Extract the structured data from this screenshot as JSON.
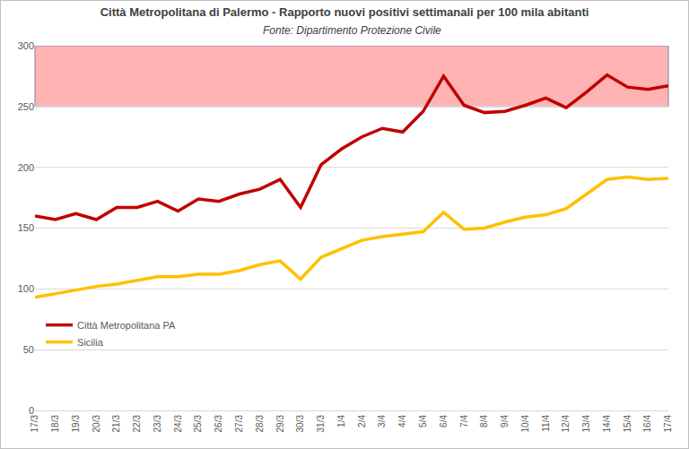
{
  "chart_data": {
    "type": "line",
    "title": "Città Metropolitana di Palermo - Rapporto nuovi positivi settimanali per 100 mila abitanti",
    "subtitle": "Fonte: Dipartimento Protezione Civile",
    "categories": [
      "17/3",
      "18/3",
      "19/3",
      "20/3",
      "21/3",
      "22/3",
      "23/3",
      "24/3",
      "25/3",
      "26/3",
      "27/3",
      "28/3",
      "29/3",
      "30/3",
      "31/3",
      "1/4",
      "2/4",
      "3/4",
      "4/4",
      "5/4",
      "6/4",
      "7/4",
      "8/4",
      "9/4",
      "10/4",
      "11/4",
      "12/4",
      "13/4",
      "14/4",
      "15/4",
      "16/4",
      "17/4"
    ],
    "series": [
      {
        "name": "Città Metropolitana PA",
        "color": "#c00000",
        "values": [
          160,
          157,
          162,
          157,
          167,
          167,
          172,
          164,
          174,
          172,
          178,
          182,
          190,
          167,
          202,
          215,
          225,
          232,
          229,
          246,
          275,
          251,
          245,
          246,
          251,
          257,
          249,
          262,
          276,
          266,
          264,
          267
        ]
      },
      {
        "name": "Sicilia",
        "color": "#ffc000",
        "values": [
          93,
          96,
          99,
          102,
          104,
          107,
          110,
          110,
          112,
          112,
          115,
          120,
          123,
          108,
          126,
          133,
          140,
          143,
          145,
          147,
          163,
          149,
          150,
          155,
          159,
          161,
          166,
          178,
          190,
          192,
          190,
          191
        ]
      }
    ],
    "highlight_band": {
      "from": 250,
      "to": 300,
      "color": "#ffb3b3"
    },
    "ylim": [
      0,
      300
    ],
    "yticks": [
      0,
      50,
      100,
      150,
      200,
      250,
      300
    ],
    "grid": true,
    "legend": "left"
  }
}
